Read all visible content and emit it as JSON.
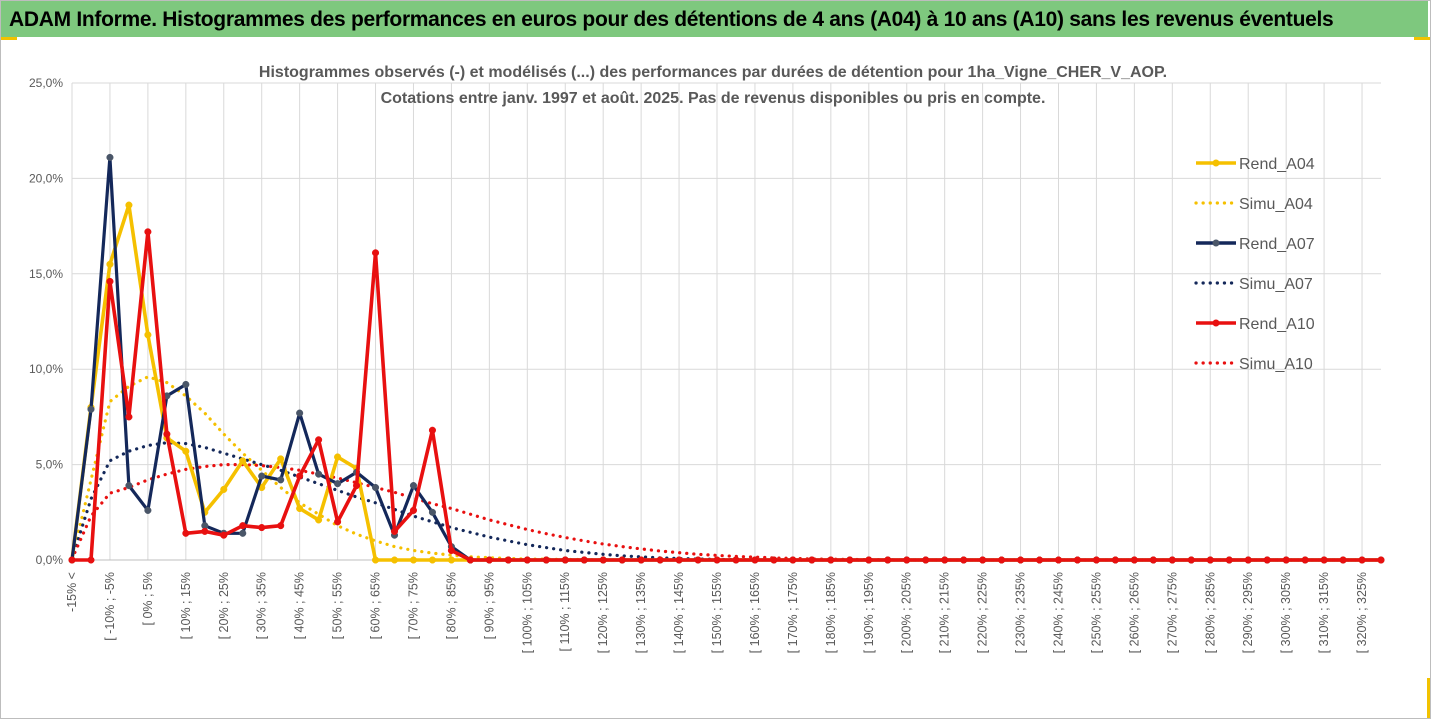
{
  "header": {
    "title": "ADAM Informe. Histogrammes des performances en euros pour des détentions de 4 ans (A04) à 10 ans (A10) sans les revenus éventuels"
  },
  "colors": {
    "banner_bg": "#7ec87e",
    "accent_corner": "#f2c200",
    "grid": "#d9d9d9",
    "text": "#595959"
  },
  "chart_data": {
    "type": "line",
    "title_line1": "Histogrammes observés (-) et modélisés (...) des performances par durées de détention pour 1ha_Vigne_CHER_V_AOP.",
    "title_line2": "Cotations entre janv. 1997 et août. 2025. Pas de revenus disponibles ou pris en compte.",
    "ylim": [
      0,
      25
    ],
    "yticks": [
      "0,0%",
      "5,0%",
      "10,0%",
      "15,0%",
      "20,0%",
      "25,0%"
    ],
    "grid": "vertical and horizontal",
    "legend_position": "right",
    "x_labels": [
      "-15% <",
      "[ -10% ; -5%",
      "[ 0% ; 5%",
      "[ 10% ; 15%",
      "[ 20% ; 25%",
      "[ 30% ; 35%",
      "[ 40% ; 45%",
      "[ 50% ; 55%",
      "[ 60% ; 65%",
      "[ 70% ; 75%",
      "[ 80% ; 85%",
      "[ 90% ; 95%",
      "[ 100% ; 105%",
      "[ 110% ; 115%",
      "[ 120% ; 125%",
      "[ 130% ; 135%",
      "[ 140% ; 145%",
      "[ 150% ; 155%",
      "[ 160% ; 165%",
      "[ 170% ; 175%",
      "[ 180% ; 185%",
      "[ 190% ; 195%",
      "[ 200% ; 205%",
      "[ 210% ; 215%",
      "[ 220% ; 225%",
      "[ 230% ; 235%",
      "[ 240% ; 245%",
      "[ 250% ; 255%",
      "[ 260% ; 265%",
      "[ 270% ; 275%",
      "[ 280% ; 285%",
      "[ 290% ; 295%",
      "[ 300% ; 305%",
      "[ 310% ; 315%",
      "[ 320% ; 325%"
    ],
    "series": [
      {
        "name": "Rend_A04",
        "style": "solid",
        "color": "#f5c000",
        "values": [
          0,
          8,
          15.5,
          18.6,
          11.8,
          6.4,
          5.7,
          2.5,
          3.7,
          5.2,
          3.8,
          5.3,
          2.7,
          2.1,
          5.4,
          4.8,
          0,
          0,
          0,
          0,
          0,
          0,
          0,
          0,
          0,
          0,
          0,
          0,
          0,
          0,
          0,
          0,
          0,
          0,
          0,
          0,
          0,
          0,
          0,
          0,
          0,
          0,
          0,
          0,
          0,
          0,
          0,
          0,
          0,
          0,
          0,
          0,
          0,
          0,
          0,
          0,
          0,
          0,
          0,
          0,
          0,
          0,
          0,
          0,
          0,
          0,
          0,
          0,
          0,
          0
        ]
      },
      {
        "name": "Simu_A04",
        "style": "dotted",
        "color": "#f5c000",
        "values": [
          0.05,
          4.2,
          8.3,
          9.1,
          9.6,
          9.3,
          8.6,
          7.7,
          6.6,
          5.6,
          4.7,
          3.8,
          3.0,
          2.4,
          1.8,
          1.35,
          1.0,
          0.7,
          0.5,
          0.36,
          0.25,
          0.17,
          0.12,
          0.08,
          0.05,
          0.04,
          0.03,
          0.02,
          0.01,
          0,
          0,
          0,
          0,
          0,
          0,
          0,
          0,
          0,
          0,
          0,
          0,
          0,
          0,
          0,
          0,
          0,
          0,
          0,
          0,
          0,
          0,
          0,
          0,
          0,
          0,
          0,
          0,
          0,
          0,
          0,
          0,
          0,
          0,
          0,
          0,
          0,
          0,
          0,
          0,
          0
        ]
      },
      {
        "name": "Rend_A07",
        "style": "solid",
        "color": "#14285a",
        "values": [
          0,
          7.9,
          21.1,
          3.9,
          2.6,
          8.6,
          9.2,
          1.8,
          1.4,
          1.4,
          4.4,
          4.2,
          7.7,
          4.5,
          4.0,
          4.6,
          3.8,
          1.3,
          3.9,
          2.5,
          0.7,
          0,
          0,
          0,
          0,
          0,
          0,
          0,
          0,
          0,
          0,
          0,
          0,
          0,
          0,
          0,
          0,
          0,
          0,
          0,
          0,
          0,
          0,
          0,
          0,
          0,
          0,
          0,
          0,
          0,
          0,
          0,
          0,
          0,
          0,
          0,
          0,
          0,
          0,
          0,
          0,
          0,
          0,
          0,
          0,
          0,
          0,
          0,
          0,
          0
        ]
      },
      {
        "name": "Simu_A07",
        "style": "dotted",
        "color": "#14285a",
        "values": [
          0.05,
          3.2,
          5.2,
          5.7,
          6.0,
          6.15,
          6.1,
          5.9,
          5.6,
          5.3,
          5.0,
          4.7,
          4.35,
          4.0,
          3.65,
          3.3,
          3.0,
          2.65,
          2.3,
          2.0,
          1.7,
          1.45,
          1.2,
          1.0,
          0.8,
          0.65,
          0.5,
          0.4,
          0.3,
          0.22,
          0.16,
          0.11,
          0.08,
          0.05,
          0.03,
          0.02,
          0.01,
          0,
          0,
          0,
          0,
          0,
          0,
          0,
          0,
          0,
          0,
          0,
          0,
          0,
          0,
          0,
          0,
          0,
          0,
          0,
          0,
          0,
          0,
          0,
          0,
          0,
          0,
          0,
          0,
          0,
          0,
          0,
          0,
          0
        ]
      },
      {
        "name": "Rend_A10",
        "style": "solid",
        "color": "#e81010",
        "values": [
          0,
          0,
          14.6,
          7.5,
          17.2,
          6.6,
          1.4,
          1.5,
          1.3,
          1.8,
          1.7,
          1.8,
          4.4,
          6.3,
          2.0,
          3.9,
          16.1,
          1.5,
          2.6,
          6.8,
          0.5,
          0,
          0,
          0,
          0,
          0,
          0,
          0,
          0,
          0,
          0,
          0,
          0,
          0,
          0,
          0,
          0,
          0,
          0,
          0,
          0,
          0,
          0,
          0,
          0,
          0,
          0,
          0,
          0,
          0,
          0,
          0,
          0,
          0,
          0,
          0,
          0,
          0,
          0,
          0,
          0,
          0,
          0,
          0,
          0,
          0,
          0,
          0,
          0,
          0
        ]
      },
      {
        "name": "Simu_A10",
        "style": "dotted",
        "color": "#e81010",
        "values": [
          0.05,
          2.3,
          3.5,
          3.8,
          4.2,
          4.5,
          4.75,
          4.9,
          5.0,
          5.0,
          4.95,
          4.85,
          4.7,
          4.5,
          4.3,
          4.05,
          3.8,
          3.55,
          3.25,
          2.95,
          2.7,
          2.4,
          2.1,
          1.85,
          1.6,
          1.38,
          1.18,
          1.0,
          0.84,
          0.7,
          0.58,
          0.47,
          0.38,
          0.3,
          0.24,
          0.19,
          0.15,
          0.11,
          0.08,
          0.06,
          0.04,
          0.03,
          0.02,
          0.01,
          0,
          0,
          0,
          0,
          0,
          0,
          0,
          0,
          0,
          0,
          0,
          0,
          0,
          0,
          0,
          0,
          0,
          0,
          0,
          0,
          0,
          0,
          0,
          0,
          0,
          0
        ]
      }
    ]
  }
}
